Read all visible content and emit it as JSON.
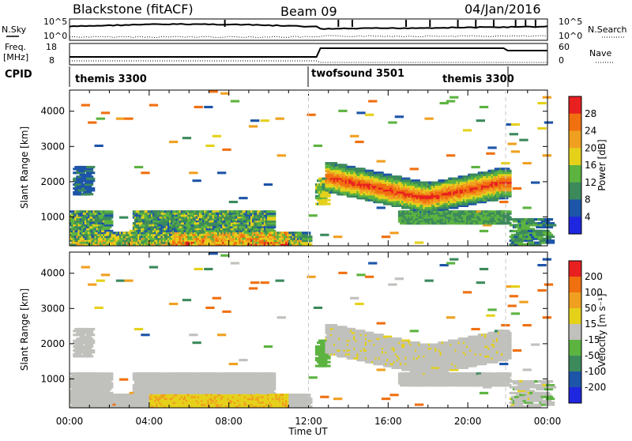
{
  "header": {
    "radar": "Blackstone (fitACF)",
    "beam": "Beam 09",
    "date": "04/Jan/2016"
  },
  "summary": {
    "nsky_label": "N.Sky",
    "nsky_ticks": [
      "10^5",
      "10^0"
    ],
    "nsearch_label": "N.Search",
    "freq_label_1": "Freq.",
    "freq_label_2": "[MHz]",
    "freq_ticks": [
      "18",
      "8"
    ],
    "nave_label": "Nave",
    "nave_ticks": [
      "60",
      "0"
    ],
    "cpid_label": "CPID",
    "modes": [
      "themis 3300",
      "twofsound 3501",
      "themis 3300"
    ]
  },
  "colors": {
    "power": [
      "#1f26e0",
      "#1d55a8",
      "#3c8a5c",
      "#5cb340",
      "#e5d11a",
      "#f0a020",
      "#f07010",
      "#e82020"
    ],
    "velocity": [
      "#1f26e0",
      "#1d55a8",
      "#3c8a5c",
      "#5cb340",
      "#c0c0bc",
      "#e5d11a",
      "#f0a020",
      "#f07010",
      "#e82020"
    ]
  },
  "chart_data": [
    {
      "type": "heatmap",
      "name": "power",
      "ylabel": "Slant Range [km]",
      "ylim": [
        180,
        4600
      ],
      "yticks": [
        1000,
        2000,
        3000,
        4000
      ],
      "x_range_hours": [
        0,
        24
      ],
      "colorbar": {
        "label": "Power [dB]",
        "ticks": [
          "28",
          "24",
          "20",
          "16",
          "12",
          "8",
          "4"
        ],
        "range": [
          0,
          32
        ]
      },
      "mode_change_hours": [
        12.0,
        21.9
      ]
    },
    {
      "type": "heatmap",
      "name": "velocity",
      "ylabel": "Slant Range [km]",
      "ylim": [
        180,
        4600
      ],
      "yticks": [
        1000,
        2000,
        3000,
        4000
      ],
      "x_range_hours": [
        0,
        24
      ],
      "colorbar": {
        "label": "Velocity [m s⁻¹]",
        "ticks": [
          "200",
          "100",
          "50",
          "15",
          "-15",
          "-50",
          "-100",
          "-200"
        ]
      },
      "xticks": [
        "00:00",
        "04:00",
        "08:00",
        "12:00",
        "16:00",
        "20:00",
        "00:00"
      ],
      "xlabel": "Time UT"
    }
  ]
}
